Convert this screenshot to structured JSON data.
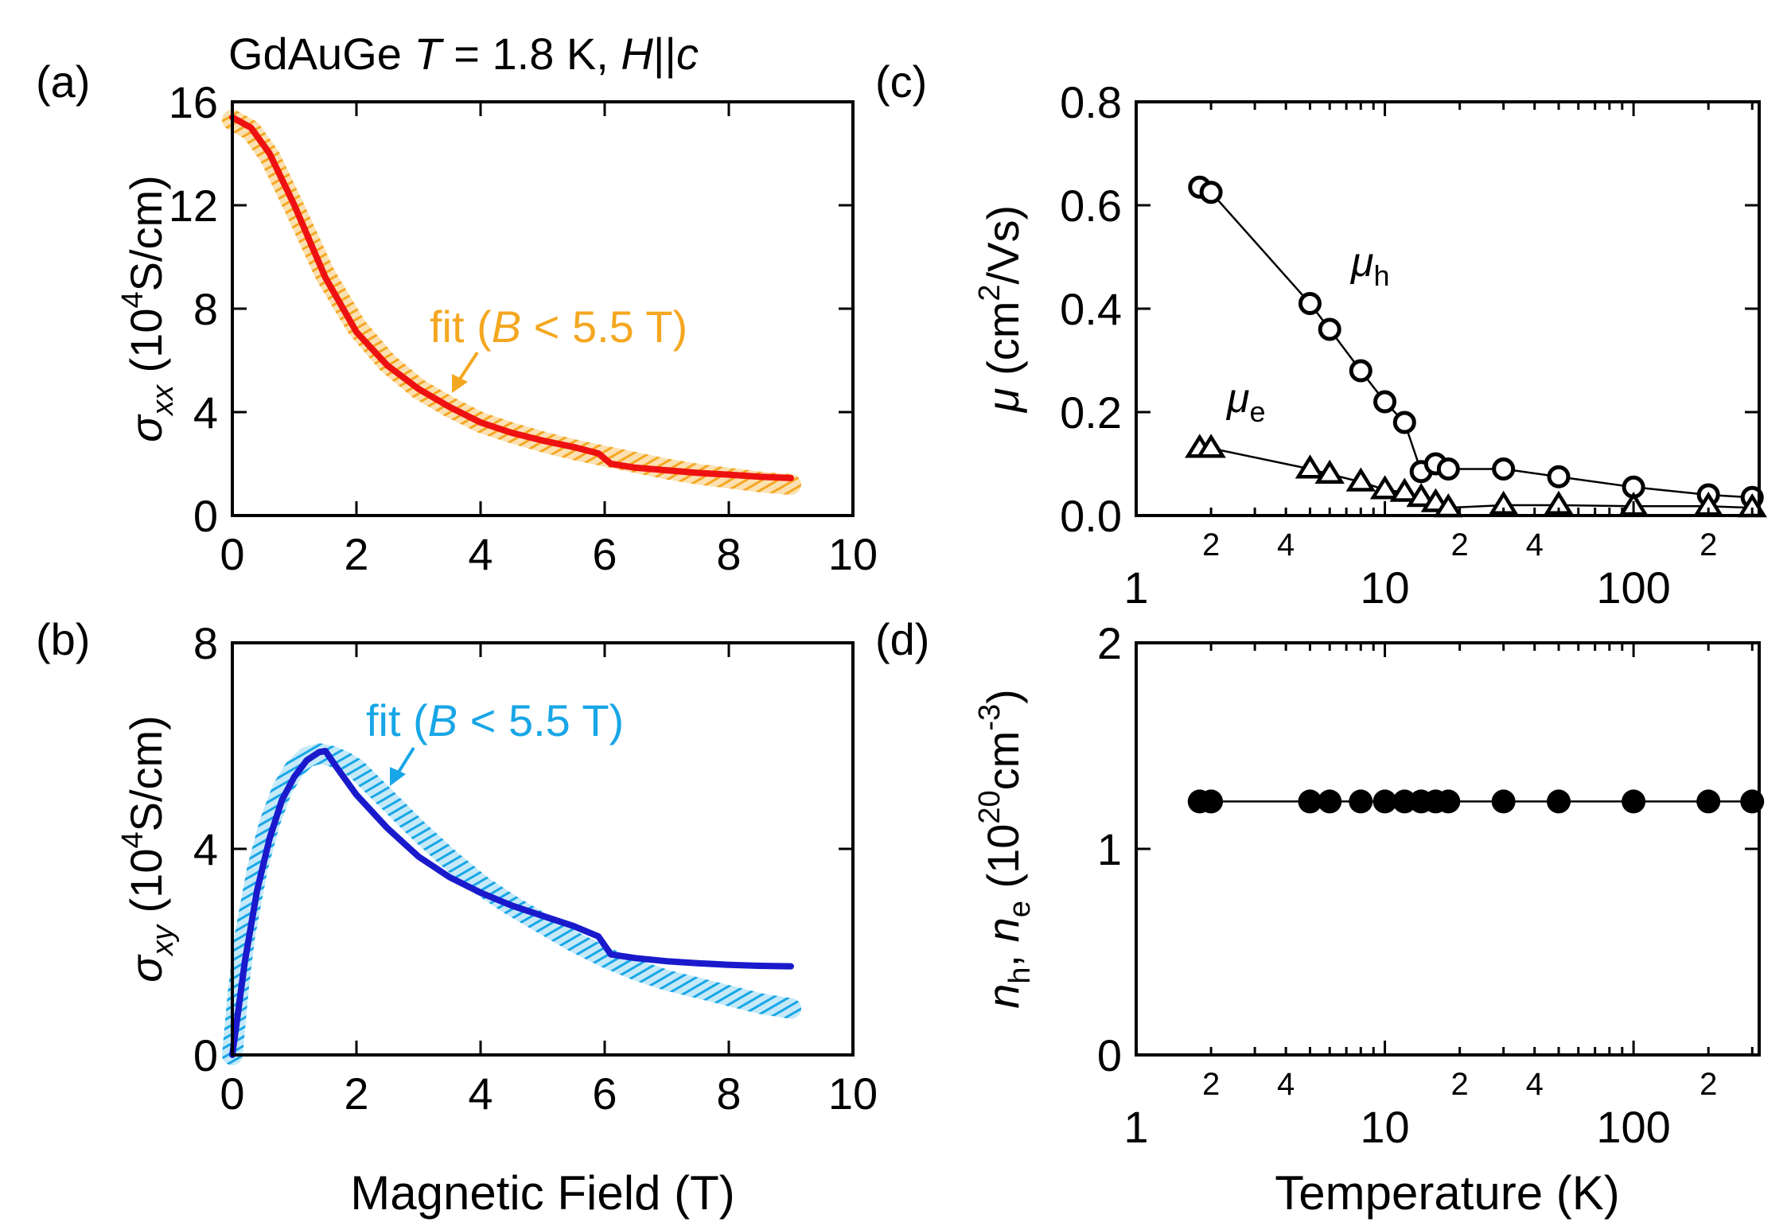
{
  "figure_title": {
    "prefix": "GdAuGe ",
    "T": "T",
    "mid": " = 1.8 K, ",
    "H": "H",
    "par": "||",
    "c": "c"
  },
  "colors": {
    "red": "#ee1111",
    "orange": "#f4a720",
    "blue": "#1a1acc",
    "cyan": "#18a6e6",
    "black": "#000000"
  },
  "chart_data": [
    {
      "id": "a",
      "type": "line",
      "panel_label": "(a)",
      "xlim": [
        0,
        10
      ],
      "ylim": [
        0,
        16
      ],
      "xticks": [
        "0",
        "2",
        "4",
        "6",
        "8",
        "10"
      ],
      "yticks": [
        "0",
        "4",
        "8",
        "12",
        "16"
      ],
      "ylabel": {
        "sym": "σ",
        "sub": "xx",
        "pre": " (10",
        "sup": "4",
        "post": "S/cm)"
      },
      "annotation": {
        "open": "fit (",
        "var": "B",
        "rest": " < 5.5 T)"
      },
      "series": [
        {
          "name": "fit (B < 5.5 T)",
          "color": "orange",
          "style": "hatched",
          "x": [
            0,
            0.3,
            0.6,
            1.0,
            1.5,
            2.0,
            2.5,
            3.0,
            3.5,
            4.0,
            4.5,
            5.0,
            5.5,
            6.0,
            6.5,
            7.0,
            7.5,
            8.0,
            8.5,
            9.0
          ],
          "y": [
            15.3,
            14.9,
            13.9,
            11.9,
            9.3,
            7.3,
            5.9,
            4.9,
            4.2,
            3.6,
            3.2,
            2.85,
            2.55,
            2.3,
            2.05,
            1.8,
            1.6,
            1.45,
            1.3,
            1.2
          ]
        },
        {
          "name": "data",
          "color": "red",
          "style": "solid",
          "x": [
            0,
            0.3,
            0.6,
            1.0,
            1.5,
            2.0,
            2.5,
            3.0,
            3.5,
            4.0,
            4.5,
            5.0,
            5.5,
            5.9,
            6.1,
            6.5,
            7.0,
            7.5,
            8.0,
            8.5,
            9.0
          ],
          "y": [
            15.4,
            15.0,
            14.0,
            12.0,
            9.2,
            7.1,
            5.8,
            4.9,
            4.2,
            3.6,
            3.2,
            2.9,
            2.65,
            2.4,
            2.0,
            1.85,
            1.75,
            1.65,
            1.58,
            1.5,
            1.45
          ]
        }
      ]
    },
    {
      "id": "b",
      "type": "line",
      "panel_label": "(b)",
      "xlim": [
        0,
        10
      ],
      "ylim": [
        0,
        8
      ],
      "xticks": [
        "0",
        "2",
        "4",
        "6",
        "8",
        "10"
      ],
      "yticks": [
        "0",
        "4",
        "8"
      ],
      "xlabel": "Magnetic Field (T)",
      "ylabel": {
        "sym": "σ",
        "sub": "xy",
        "pre": " (10",
        "sup": "4",
        "post": "S/cm)"
      },
      "annotation": {
        "open": "fit (",
        "var": "B",
        "rest": " < 5.5 T)"
      },
      "series": [
        {
          "name": "fit (B < 5.5 T)",
          "color": "cyan",
          "style": "hatched",
          "x": [
            0,
            0.1,
            0.2,
            0.4,
            0.6,
            0.8,
            1.0,
            1.2,
            1.4,
            1.6,
            1.8,
            2.0,
            2.5,
            3.0,
            3.5,
            4.0,
            4.5,
            5.0,
            5.5,
            6.0,
            6.5,
            7.0,
            7.5,
            8.0,
            8.5,
            9.0
          ],
          "y": [
            0,
            1.3,
            2.3,
            3.6,
            4.5,
            5.15,
            5.55,
            5.78,
            5.85,
            5.8,
            5.7,
            5.55,
            4.95,
            4.35,
            3.8,
            3.3,
            2.9,
            2.55,
            2.2,
            1.9,
            1.65,
            1.45,
            1.3,
            1.15,
            1.0,
            0.9
          ]
        },
        {
          "name": "data",
          "color": "blue",
          "style": "solid",
          "x": [
            0,
            0.1,
            0.2,
            0.4,
            0.6,
            0.8,
            1.0,
            1.2,
            1.4,
            1.5,
            1.7,
            2.0,
            2.5,
            3.0,
            3.5,
            4.0,
            4.5,
            5.0,
            5.5,
            5.9,
            6.1,
            6.5,
            7.0,
            7.5,
            8.0,
            8.5,
            9.0
          ],
          "y": [
            0,
            0.9,
            1.8,
            3.2,
            4.2,
            4.95,
            5.4,
            5.72,
            5.88,
            5.9,
            5.55,
            5.05,
            4.4,
            3.85,
            3.45,
            3.15,
            2.9,
            2.7,
            2.5,
            2.3,
            1.95,
            1.88,
            1.82,
            1.78,
            1.75,
            1.73,
            1.72
          ]
        }
      ]
    },
    {
      "id": "c",
      "type": "scatter",
      "panel_label": "(c)",
      "xscale": "log",
      "xlim": [
        1,
        320
      ],
      "ylim": [
        0,
        0.8
      ],
      "xticks_major": [
        {
          "v": 1,
          "t": "1"
        },
        {
          "v": 10,
          "t": "10"
        },
        {
          "v": 100,
          "t": "100"
        }
      ],
      "xticks_minor_labeled": [
        {
          "v": 2,
          "t": "2"
        },
        {
          "v": 4,
          "t": "4"
        },
        {
          "v": 20,
          "t": "2"
        },
        {
          "v": 40,
          "t": "4"
        },
        {
          "v": 200,
          "t": "2"
        }
      ],
      "yticks": [
        {
          "v": 0,
          "t": "0.0"
        },
        {
          "v": 0.2,
          "t": "0.2"
        },
        {
          "v": 0.4,
          "t": "0.4"
        },
        {
          "v": 0.6,
          "t": "0.6"
        },
        {
          "v": 0.8,
          "t": "0.8"
        }
      ],
      "ylabel": {
        "sym": "μ",
        "pre": " (cm",
        "sup": "2",
        "post": "/Vs)"
      },
      "series": [
        {
          "name": "mu_h",
          "label_sym": "μ",
          "label_sub": "h",
          "marker": "circle",
          "x": [
            1.8,
            2,
            5,
            6,
            8,
            10,
            12,
            14,
            16,
            18,
            30,
            50,
            100,
            200,
            300
          ],
          "y": [
            0.635,
            0.625,
            0.41,
            0.36,
            0.28,
            0.22,
            0.18,
            0.085,
            0.1,
            0.09,
            0.09,
            0.075,
            0.055,
            0.04,
            0.035
          ]
        },
        {
          "name": "mu_e",
          "label_sym": "μ",
          "label_sub": "e",
          "marker": "triangle",
          "x": [
            1.8,
            2,
            5,
            6,
            8,
            10,
            12,
            14,
            16,
            18,
            30,
            50,
            100,
            200,
            300
          ],
          "y": [
            0.13,
            0.13,
            0.09,
            0.08,
            0.065,
            0.05,
            0.045,
            0.035,
            0.025,
            0.015,
            0.02,
            0.02,
            0.018,
            0.018,
            0.015
          ]
        }
      ]
    },
    {
      "id": "d",
      "type": "scatter",
      "panel_label": "(d)",
      "xscale": "log",
      "xlim": [
        1,
        320
      ],
      "ylim": [
        0,
        2
      ],
      "xticks_major": [
        {
          "v": 1,
          "t": "1"
        },
        {
          "v": 10,
          "t": "10"
        },
        {
          "v": 100,
          "t": "100"
        }
      ],
      "xticks_minor_labeled": [
        {
          "v": 2,
          "t": "2"
        },
        {
          "v": 4,
          "t": "4"
        },
        {
          "v": 20,
          "t": "2"
        },
        {
          "v": 40,
          "t": "4"
        },
        {
          "v": 200,
          "t": "2"
        }
      ],
      "yticks": [
        {
          "v": 0,
          "t": "0"
        },
        {
          "v": 1,
          "t": "1"
        },
        {
          "v": 2,
          "t": "2"
        }
      ],
      "xlabel": "Temperature (K)",
      "ylabel": {
        "n1": "n",
        "s1": "h",
        "comma": ", ",
        "n2": "n",
        "s2": "e",
        "pre": " (10",
        "sup": "20",
        "mid": "cm",
        "sup2": "-3",
        "post": ")"
      },
      "series": [
        {
          "name": "n_h = n_e",
          "marker": "filled-circle",
          "x": [
            1.8,
            2,
            5,
            6,
            8,
            10,
            12,
            14,
            16,
            18,
            30,
            50,
            100,
            200,
            300
          ],
          "y": [
            1.23,
            1.23,
            1.23,
            1.23,
            1.23,
            1.23,
            1.23,
            1.23,
            1.23,
            1.23,
            1.23,
            1.23,
            1.23,
            1.23,
            1.23
          ]
        }
      ]
    }
  ]
}
